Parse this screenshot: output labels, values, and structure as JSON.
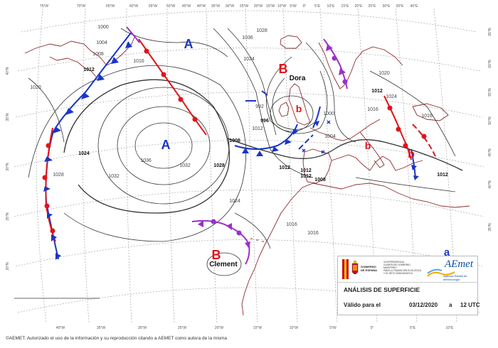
{
  "map": {
    "longitude_labels_top": [
      "75°W",
      "70°W",
      "65°W",
      "60°W",
      "55°W",
      "50°W",
      "45°W",
      "40°W",
      "35°W",
      "30°W",
      "25°W",
      "20°W",
      "15°W",
      "10°W",
      "5°W",
      "0°",
      "5°E",
      "10°E",
      "15°E",
      "20°E",
      "25°E",
      "30°E",
      "35°E",
      "40°E"
    ],
    "longitude_labels_bottom": [
      "40°W",
      "35°W",
      "30°W",
      "25°W",
      "20°W",
      "15°W",
      "10°W",
      "5°W",
      "0°",
      "5°E",
      "10°E"
    ],
    "latitude_labels_left": [
      "40°N",
      "35°N",
      "30°N",
      "25°N",
      "20°N"
    ],
    "latitude_labels_right": [
      "65°N",
      "60°N",
      "55°N",
      "50°N",
      "45°N",
      "40°N",
      "35°N"
    ],
    "pressure_centers": [
      {
        "type": "A",
        "color": "#1a35c9"
      },
      {
        "type": "A",
        "color": "#1a35c9"
      },
      {
        "type": "B",
        "color": "#e0141a",
        "name": "Dora"
      },
      {
        "type": "b",
        "color": "#e0141a"
      },
      {
        "type": "b",
        "color": "#e0141a"
      },
      {
        "type": "b",
        "color": "#e0141a"
      },
      {
        "type": "B",
        "color": "#e0141a",
        "name": "Clement"
      },
      {
        "type": "a",
        "color": "#1a35c9"
      }
    ],
    "isobar_labels": [
      "1000",
      "1004",
      "1008",
      "1012",
      "1016",
      "1020",
      "1024",
      "1028",
      "1032",
      "1036",
      "992",
      "996",
      "1012",
      "1008",
      "1032",
      "1028",
      "1024",
      "1016",
      "1012",
      "1012",
      "1012",
      "1008",
      "1004",
      "1000",
      "1016",
      "1020",
      "1024",
      "1016",
      "1012",
      "1016",
      "1036",
      "1024",
      "1028",
      "1012"
    ],
    "colors": {
      "cold_front": "#1a35c9",
      "warm_front": "#e0141a",
      "occluded_front": "#9b30c9",
      "isobar": "#333333",
      "coastline": "#8b2c2c"
    }
  },
  "legend": {
    "title": "ANÁLISIS DE SUPERFICIE",
    "valid_label": "Válido para el",
    "valid_date": "03/12/2020",
    "valid_connector": "a",
    "valid_time": "12 UTC",
    "government_text": [
      "VICEPRESIDENCIA",
      "CUARTA DEL GOBIERNO",
      "MINISTERIO",
      "PARA LA TRANSICIÓN ECOLÓGICA",
      "Y EL RETO DEMOGRÁFICO"
    ],
    "government_label": [
      "GOBIERNO",
      "DE ESPAÑA"
    ],
    "aemet_logo": "AEmet",
    "aemet_subtitle": "Agencia Estatal de Meteorología"
  },
  "footer": {
    "copyright": "©AEMET. Autorizado el uso de la información y su reproducción citando a AEMET como autora de la misma"
  }
}
